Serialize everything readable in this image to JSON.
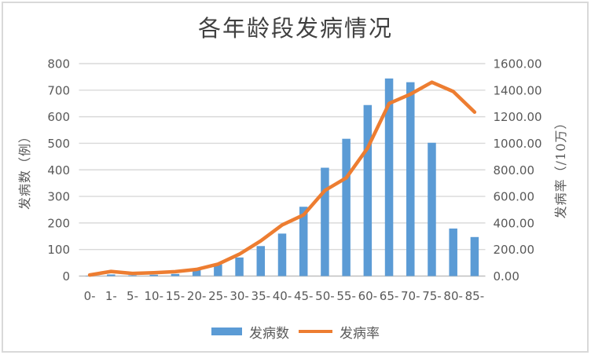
{
  "frame": {
    "background": "#FFFFFF",
    "border_color": "#D9D9D9"
  },
  "chart_data": {
    "type": "bar+line",
    "title": "各年龄段发病情况",
    "categories": [
      "0-",
      "1-",
      "5-",
      "10-",
      "15-",
      "20-",
      "25-",
      "30-",
      "35-",
      "40-",
      "45-",
      "50-",
      "55-",
      "60-",
      "65-",
      "70-",
      "75-",
      "80-",
      "85-"
    ],
    "series": [
      {
        "name": "发病数",
        "type": "bar",
        "axis": "left",
        "color": "#5B9BD5",
        "values": [
          1,
          6,
          3,
          5,
          8,
          24,
          44,
          70,
          113,
          160,
          261,
          408,
          517,
          644,
          744,
          730,
          502,
          179,
          147
        ]
      },
      {
        "name": "发病率",
        "type": "line",
        "axis": "right",
        "color": "#ED7D31",
        "values": [
          8,
          35,
          20,
          25,
          33,
          50,
          90,
          165,
          265,
          385,
          460,
          645,
          740,
          965,
          1300,
          1370,
          1460,
          1390,
          1235
        ]
      }
    ],
    "left_axis": {
      "title": "发病数（例）",
      "min": 0,
      "max": 800,
      "step": 100,
      "decimals": 0
    },
    "right_axis": {
      "title": "发病率（/10万）",
      "min": 0,
      "max": 1600,
      "step": 200,
      "decimals": 2
    },
    "grid": true,
    "legend_position": "bottom",
    "colors": {
      "grid": "#D9D9D9",
      "axis_line": "#BFBFBF",
      "tick_text": "#595959",
      "title_text": "#404040"
    }
  }
}
